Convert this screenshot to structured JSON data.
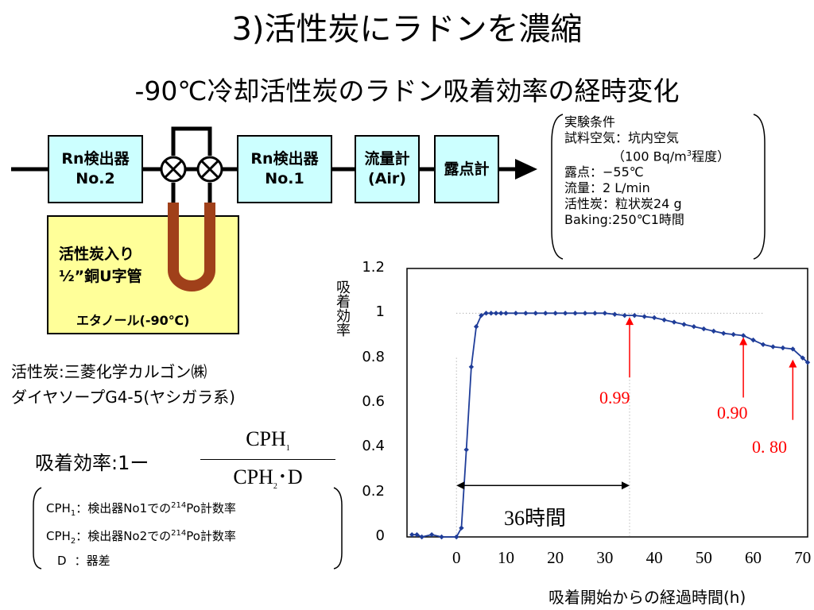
{
  "title": "3)活性炭にラドンを濃縮",
  "subtitle": "-90℃冷却活性炭のラドン吸着効率の経時変化",
  "apparatus": {
    "detector2": [
      "Rn検出器",
      "No.2"
    ],
    "detector1": [
      "Rn検出器",
      "No.1"
    ],
    "flowmeter": [
      "流量計",
      "(Air)"
    ],
    "dewpoint": "露点計",
    "utube": [
      "活性炭入り",
      "½”銅U字管"
    ],
    "coolant": "エタノール(-90℃)"
  },
  "conditions": {
    "heading": "実験条件",
    "sample_label": "試料空気：坑内空気",
    "sample_conc_pre": "（100 Bq/m",
    "sample_conc_sup": "3",
    "sample_conc_post": "程度）",
    "dewpoint": "露点：−55℃",
    "flow": "流量：2 L/min",
    "carbon": "活性炭：粒状炭24 g",
    "baking": "Baking:250℃1時間"
  },
  "carbon_info": {
    "line1": "活性炭:三菱化学カルゴン㈱",
    "line2": "ダイヤソープG4-5(ヤシガラ系)"
  },
  "formula": {
    "lhs": "吸着効率:1ー",
    "numerator_base": "CPH",
    "numerator_sub": "1",
    "denominator_base": "CPH",
    "denominator_sub": "2",
    "denominator_tail": "･D"
  },
  "legend": {
    "cph1_base": "CPH",
    "cph1_sub": "1",
    "cph1_mid": "：検出器No1での",
    "cph1_sup": "214",
    "cph1_tail": "Po計数率",
    "cph2_base": "CPH",
    "cph2_sub": "2",
    "cph2_mid": "：検出器No2での",
    "cph2_sup": "214",
    "cph2_tail": "Po計数率",
    "d_label": "D",
    "d_text": "：器差"
  },
  "chart_data": {
    "type": "line",
    "xlabel": "吸着開始からの経過時間(h)",
    "ylabel": "吸着効率",
    "xlim": [
      -10,
      71
    ],
    "ylim": [
      0,
      1.2
    ],
    "xticks": [
      "0",
      "10",
      "20",
      "30",
      "40",
      "50",
      "60",
      "70"
    ],
    "yticks": [
      "0",
      "0.2",
      "0.4",
      "0.6",
      "0.8",
      "1",
      "1.2"
    ],
    "grid": false,
    "x": [
      -9,
      -8,
      -7,
      -5,
      -3,
      0,
      1,
      2,
      3,
      4,
      5,
      6,
      7,
      8,
      9,
      10,
      12,
      14,
      16,
      18,
      20,
      22,
      24,
      26,
      28,
      30,
      32,
      34,
      36,
      38,
      40,
      42,
      44,
      46,
      48,
      50,
      52,
      54,
      56,
      58,
      60,
      62,
      64,
      66,
      68,
      70,
      71
    ],
    "y": [
      0.01,
      0.01,
      0.0,
      0.01,
      0.0,
      0.0,
      0.04,
      0.39,
      0.76,
      0.94,
      0.99,
      1.0,
      1.0,
      1.0,
      1.0,
      1.0,
      1.0,
      1.0,
      1.0,
      1.0,
      1.0,
      1.0,
      1.0,
      1.0,
      1.0,
      1.0,
      0.995,
      0.99,
      0.99,
      0.985,
      0.98,
      0.97,
      0.96,
      0.95,
      0.94,
      0.93,
      0.92,
      0.91,
      0.905,
      0.9,
      0.88,
      0.86,
      0.85,
      0.845,
      0.84,
      0.8,
      0.78
    ],
    "annotations": [
      {
        "text": "0.99",
        "x": 35,
        "y": 0.99
      },
      {
        "text": "0.90",
        "x": 58,
        "y": 0.9
      },
      {
        "text": "0. 80",
        "x": 68,
        "y": 0.8
      }
    ],
    "span_label": "36時間",
    "span": [
      0,
      35
    ]
  },
  "colors": {
    "series": "#1f3d99",
    "annotation": "#ff0000",
    "cyan_box": "#ccffff",
    "yellow_box": "#ffff99",
    "utube": "#a0401a"
  }
}
